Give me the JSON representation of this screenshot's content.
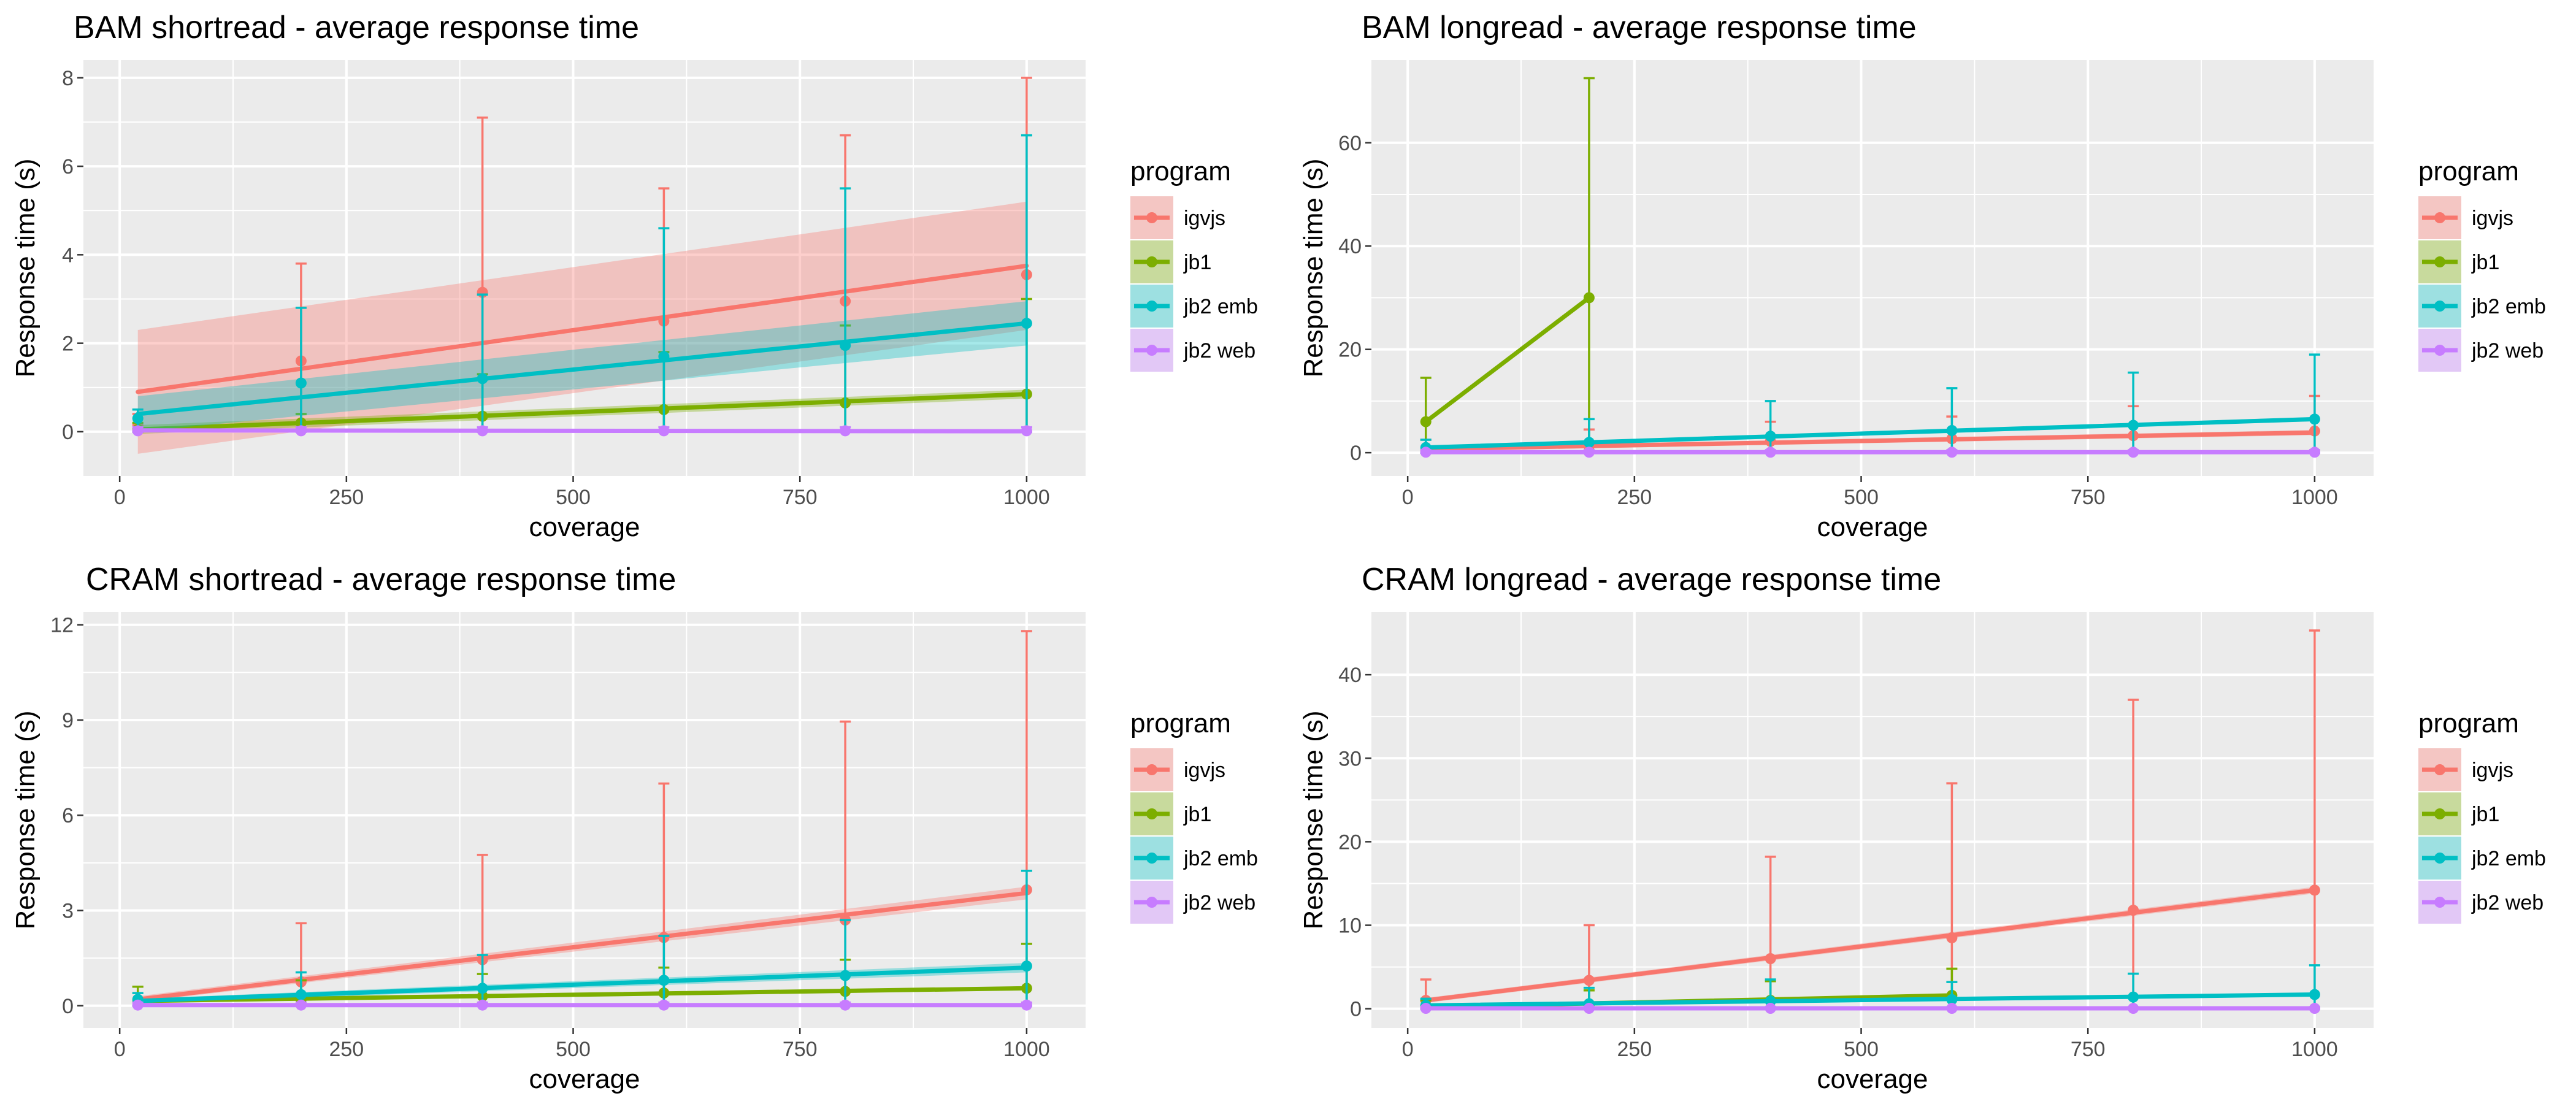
{
  "chart_data": [
    {
      "type": "line",
      "title": "BAM shortread - average response time",
      "xlabel": "coverage",
      "ylabel": "Response time (s)",
      "xlim": [
        -40,
        1065
      ],
      "ylim": [
        -1.0,
        8.4
      ],
      "xticks": [
        0,
        250,
        500,
        750,
        1000
      ],
      "yticks": [
        0,
        2,
        4,
        6,
        8
      ],
      "legend_title": "program",
      "legend_position": "right",
      "x": [
        20,
        200,
        400,
        600,
        800,
        1000
      ],
      "series": [
        {
          "name": "igvjs",
          "color": "#F8766D",
          "values": [
            0.15,
            1.6,
            3.15,
            2.5,
            2.95,
            3.55
          ],
          "err_upper": [
            0.4,
            3.8,
            7.1,
            5.5,
            6.7,
            8.0
          ],
          "fit": [
            0.9,
            3.75
          ],
          "band": [
            [
              -0.5,
              2.3
            ],
            [
              2.3,
              5.2
            ]
          ]
        },
        {
          "name": "jb1",
          "color": "#7CAE00",
          "values": [
            0.05,
            0.2,
            0.35,
            0.5,
            0.65,
            0.85
          ],
          "err_upper": [
            0.2,
            0.4,
            1.3,
            1.8,
            2.4,
            3.0
          ],
          "fit": [
            0.05,
            0.85
          ],
          "band": [
            [
              -0.05,
              0.15
            ],
            [
              0.75,
              0.95
            ]
          ]
        },
        {
          "name": "jb2 emb",
          "color": "#00BFC4",
          "values": [
            0.3,
            1.1,
            1.2,
            1.7,
            1.95,
            2.45
          ],
          "err_upper": [
            0.5,
            2.8,
            3.1,
            4.6,
            5.5,
            6.7
          ],
          "fit": [
            0.4,
            2.45
          ],
          "band": [
            [
              0.0,
              0.8
            ],
            [
              1.95,
              2.95
            ]
          ]
        },
        {
          "name": "jb2 web",
          "color": "#C77CFF",
          "values": [
            0.02,
            0.02,
            0.02,
            0.02,
            0.02,
            0.02
          ],
          "err_upper": [
            0.1,
            0.1,
            0.1,
            0.1,
            0.1,
            0.1
          ],
          "fit": [
            0.03,
            0.01
          ],
          "band": [
            [
              0.0,
              0.06
            ],
            [
              -0.02,
              0.04
            ]
          ]
        }
      ]
    },
    {
      "type": "line",
      "title": "BAM longread - average response time",
      "xlabel": "coverage",
      "ylabel": "Response time (s)",
      "xlim": [
        -40,
        1065
      ],
      "ylim": [
        -4.5,
        76
      ],
      "xticks": [
        0,
        250,
        500,
        750,
        1000
      ],
      "yticks": [
        0,
        20,
        40,
        60
      ],
      "legend_title": "program",
      "legend_position": "right",
      "x": [
        20,
        200,
        400,
        600,
        800,
        1000
      ],
      "series": [
        {
          "name": "igvjs",
          "color": "#F8766D",
          "values": [
            0.5,
            1.2,
            2.2,
            2.7,
            3.3,
            4.2
          ],
          "err_upper": [
            2.5,
            4.5,
            6.0,
            7.0,
            9.0,
            11.0
          ],
          "fit": [
            0.7,
            3.9
          ],
          "band": [
            [
              0.3,
              1.1
            ],
            [
              3.4,
              4.4
            ]
          ]
        },
        {
          "name": "jb1",
          "color": "#7CAE00",
          "values": [
            6.0,
            30.0,
            null,
            null,
            null,
            null
          ],
          "err_upper": [
            14.5,
            72.5,
            null,
            null,
            null,
            null
          ],
          "fit": null,
          "band": null
        },
        {
          "name": "jb2 emb",
          "color": "#00BFC4",
          "values": [
            1.0,
            2.0,
            3.2,
            4.3,
            5.3,
            6.5
          ],
          "err_upper": [
            2.5,
            6.5,
            10.0,
            12.5,
            15.5,
            19.0
          ],
          "fit": [
            1.0,
            6.5
          ],
          "band": [
            [
              0.7,
              1.3
            ],
            [
              6.1,
              6.9
            ]
          ]
        },
        {
          "name": "jb2 web",
          "color": "#C77CFF",
          "values": [
            0.1,
            0.1,
            0.1,
            0.1,
            0.1,
            0.1
          ],
          "err_upper": [
            0.5,
            0.5,
            0.5,
            0.5,
            0.5,
            0.5
          ],
          "fit": [
            0.1,
            0.1
          ],
          "band": null
        }
      ]
    },
    {
      "type": "line",
      "title": "CRAM shortread - average response time",
      "xlabel": "coverage",
      "ylabel": "Response time (s)",
      "xlim": [
        -40,
        1065
      ],
      "ylim": [
        -0.7,
        12.4
      ],
      "xticks": [
        0,
        250,
        500,
        750,
        1000
      ],
      "yticks": [
        0,
        3,
        6,
        9,
        12
      ],
      "legend_title": "program",
      "legend_position": "right",
      "x": [
        20,
        200,
        400,
        600,
        800,
        1000
      ],
      "series": [
        {
          "name": "igvjs",
          "color": "#F8766D",
          "values": [
            0.2,
            0.75,
            1.45,
            2.15,
            2.7,
            3.65
          ],
          "err_upper": [
            0.6,
            2.6,
            4.75,
            7.0,
            8.95,
            11.8
          ],
          "fit": [
            0.2,
            3.55
          ],
          "band": [
            [
              0.12,
              0.3
            ],
            [
              3.35,
              3.75
            ]
          ]
        },
        {
          "name": "jb1",
          "color": "#7CAE00",
          "values": [
            0.15,
            0.2,
            0.3,
            0.4,
            0.45,
            0.55
          ],
          "err_upper": [
            0.6,
            0.8,
            1.0,
            1.2,
            1.45,
            1.95
          ],
          "fit": [
            0.15,
            0.55
          ],
          "band": null
        },
        {
          "name": "jb2 emb",
          "color": "#00BFC4",
          "values": [
            0.2,
            0.35,
            0.55,
            0.8,
            0.95,
            1.25
          ],
          "err_upper": [
            0.4,
            1.05,
            1.6,
            2.2,
            2.7,
            4.25
          ],
          "fit": [
            0.15,
            1.2
          ],
          "band": [
            [
              0.08,
              0.22
            ],
            [
              1.05,
              1.35
            ]
          ]
        },
        {
          "name": "jb2 web",
          "color": "#C77CFF",
          "values": [
            0.02,
            0.02,
            0.02,
            0.02,
            0.02,
            0.02
          ],
          "err_upper": [
            0.1,
            0.1,
            0.1,
            0.1,
            0.1,
            0.1
          ],
          "fit": [
            0.02,
            0.02
          ],
          "band": null
        }
      ]
    },
    {
      "type": "line",
      "title": "CRAM longread - average response time",
      "xlabel": "coverage",
      "ylabel": "Response time (s)",
      "xlim": [
        -40,
        1065
      ],
      "ylim": [
        -2.3,
        47.5
      ],
      "xticks": [
        0,
        250,
        500,
        750,
        1000
      ],
      "yticks": [
        0,
        10,
        20,
        30,
        40
      ],
      "legend_title": "program",
      "legend_position": "right",
      "x": [
        20,
        200,
        400,
        600,
        800,
        1000
      ],
      "series": [
        {
          "name": "igvjs",
          "color": "#F8766D",
          "values": [
            1.0,
            3.4,
            6.0,
            8.5,
            11.8,
            14.2
          ],
          "err_upper": [
            3.5,
            10.0,
            18.2,
            27.0,
            37.0,
            45.3
          ],
          "fit": [
            1.0,
            14.2
          ],
          "band": [
            [
              0.7,
              1.3
            ],
            [
              13.8,
              14.6
            ]
          ]
        },
        {
          "name": "jb1",
          "color": "#7CAE00",
          "values": [
            0.3,
            0.5,
            1.0,
            1.6,
            null,
            null
          ],
          "err_upper": [
            1.0,
            2.2,
            3.3,
            4.8,
            null,
            null
          ],
          "fit": [
            0.2,
            1.6
          ],
          "band": null
        },
        {
          "name": "jb2 emb",
          "color": "#00BFC4",
          "values": [
            0.4,
            0.6,
            0.9,
            1.1,
            1.4,
            1.7
          ],
          "err_upper": [
            1.2,
            2.5,
            3.5,
            3.2,
            4.2,
            5.2
          ],
          "fit": [
            0.4,
            1.7
          ],
          "band": null
        },
        {
          "name": "jb2 web",
          "color": "#C77CFF",
          "values": [
            0.05,
            0.05,
            0.05,
            0.05,
            0.05,
            0.05
          ],
          "err_upper": [
            0.2,
            0.2,
            0.2,
            0.2,
            0.2,
            0.2
          ],
          "fit": [
            0.05,
            0.05
          ],
          "band": null
        }
      ]
    }
  ]
}
